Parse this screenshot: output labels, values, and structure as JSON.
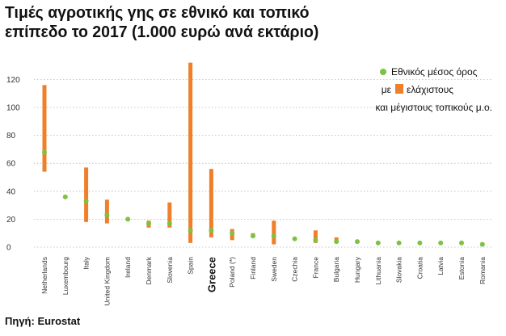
{
  "title_lines": [
    "Τιμές αγροτικής γης σε εθνικό και τοπικό",
    "επίπεδο το 2017 (1.000 ευρώ ανά εκτάριο)"
  ],
  "source": "Πηγή: Eurostat",
  "colors": {
    "range": "#f07f2a",
    "mean": "#7dc242",
    "grid": "#b5b5b5"
  },
  "legend": {
    "line1": "Εθνικός μέσος όρος",
    "line2_prefix": "με",
    "line2_suffix": "ελάχιστους",
    "line3": "και μέγιστους τοπικούς μ.ο."
  },
  "chart_data": {
    "type": "scatter",
    "ylim": [
      0,
      130
    ],
    "yticks": [
      0,
      20,
      40,
      60,
      80,
      100,
      120
    ],
    "grid": true,
    "legend_position": "top-right",
    "highlight_category": "Greece",
    "categories": [
      "Netherlands",
      "Luxembourg",
      "Italy",
      "United Kingdom",
      "Ireland",
      "Denmark",
      "Slovenia",
      "Spain",
      "Greece",
      "Poland (*)",
      "Finland",
      "Sweden",
      "Czechia",
      "France",
      "Bulgaria",
      "Hungary",
      "Lithuania",
      "Slovakia",
      "Croatia",
      "Latvia",
      "Estonia",
      "Romania"
    ],
    "series": [
      {
        "name": "Εθνικός μέσος όρος",
        "values": [
          68,
          36,
          33,
          23,
          20,
          17,
          17,
          12,
          12,
          10,
          8,
          8,
          6,
          5,
          4,
          4,
          3,
          3,
          3,
          3,
          3,
          2
        ]
      },
      {
        "name": "ελάχιστους",
        "values": [
          54,
          null,
          18,
          17,
          null,
          14,
          14,
          3,
          7,
          5,
          7,
          2,
          null,
          3,
          3,
          null,
          null,
          null,
          null,
          null,
          null,
          null
        ]
      },
      {
        "name": "μέγιστους",
        "values": [
          116,
          null,
          57,
          34,
          null,
          19,
          32,
          132,
          56,
          13,
          10,
          19,
          null,
          12,
          7,
          null,
          null,
          null,
          null,
          null,
          null,
          null
        ]
      }
    ]
  }
}
